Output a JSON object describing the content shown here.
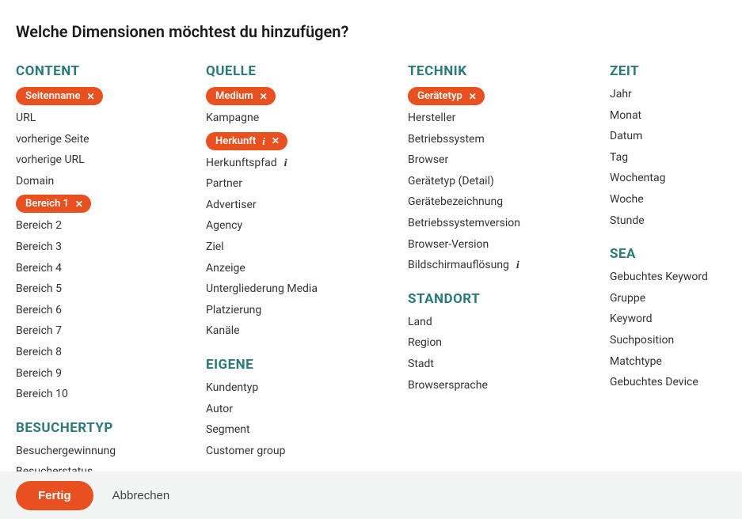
{
  "heading": "Welche Dimensionen möchtest du hinzufügen?",
  "colors": {
    "accent": "#e8501f",
    "section_title": "#2a7a78",
    "text": "#333333",
    "footer_bg": "#f3f4f4"
  },
  "sections": {
    "content": {
      "title": "CONTENT",
      "items": [
        {
          "label": "Seitenname",
          "selected": true
        },
        {
          "label": "URL"
        },
        {
          "label": "vorherige Seite"
        },
        {
          "label": "vorherige URL"
        },
        {
          "label": "Domain"
        },
        {
          "label": "Bereich 1",
          "selected": true
        },
        {
          "label": "Bereich 2"
        },
        {
          "label": "Bereich 3"
        },
        {
          "label": "Bereich 4"
        },
        {
          "label": "Bereich 5"
        },
        {
          "label": "Bereich 6"
        },
        {
          "label": "Bereich 7"
        },
        {
          "label": "Bereich 8"
        },
        {
          "label": "Bereich 9"
        },
        {
          "label": "Bereich 10"
        }
      ]
    },
    "besuchertyp": {
      "title": "BESUCHERTYP",
      "items": [
        {
          "label": "Besuchergewinnung"
        },
        {
          "label": "Besucherstatus"
        }
      ]
    },
    "quelle": {
      "title": "QUELLE",
      "items": [
        {
          "label": "Medium",
          "selected": true
        },
        {
          "label": "Kampagne"
        },
        {
          "label": "Herkunft",
          "selected": true,
          "info": true
        },
        {
          "label": "Herkunftspfad",
          "info": true
        },
        {
          "label": "Partner"
        },
        {
          "label": "Advertiser"
        },
        {
          "label": "Agency"
        },
        {
          "label": "Ziel"
        },
        {
          "label": "Anzeige"
        },
        {
          "label": "Untergliederung Media"
        },
        {
          "label": "Platzierung"
        },
        {
          "label": "Kanäle"
        }
      ]
    },
    "eigene": {
      "title": "EIGENE",
      "items": [
        {
          "label": "Kundentyp"
        },
        {
          "label": "Autor"
        },
        {
          "label": "Segment"
        },
        {
          "label": "Customer group"
        }
      ]
    },
    "technik": {
      "title": "TECHNIK",
      "items": [
        {
          "label": "Gerätetyp",
          "selected": true
        },
        {
          "label": "Hersteller"
        },
        {
          "label": "Betriebssystem"
        },
        {
          "label": "Browser"
        },
        {
          "label": "Gerätetyp (Detail)"
        },
        {
          "label": "Gerätebezeichnung"
        },
        {
          "label": "Betriebssystemversion"
        },
        {
          "label": "Browser-Version"
        },
        {
          "label": "Bildschirmauflösung",
          "info": true
        }
      ]
    },
    "standort": {
      "title": "STANDORT",
      "items": [
        {
          "label": "Land"
        },
        {
          "label": "Region"
        },
        {
          "label": "Stadt"
        },
        {
          "label": "Browsersprache"
        }
      ]
    },
    "zeit": {
      "title": "ZEIT",
      "items": [
        {
          "label": "Jahr"
        },
        {
          "label": "Monat"
        },
        {
          "label": "Datum"
        },
        {
          "label": "Tag"
        },
        {
          "label": "Wochentag"
        },
        {
          "label": "Woche"
        },
        {
          "label": "Stunde"
        }
      ]
    },
    "sea": {
      "title": "SEA",
      "items": [
        {
          "label": "Gebuchtes Keyword"
        },
        {
          "label": "Gruppe"
        },
        {
          "label": "Keyword"
        },
        {
          "label": "Suchposition"
        },
        {
          "label": "Matchtype"
        },
        {
          "label": "Gebuchtes Device"
        }
      ]
    }
  },
  "footer": {
    "primary_label": "Fertig",
    "secondary_label": "Abbrechen"
  }
}
